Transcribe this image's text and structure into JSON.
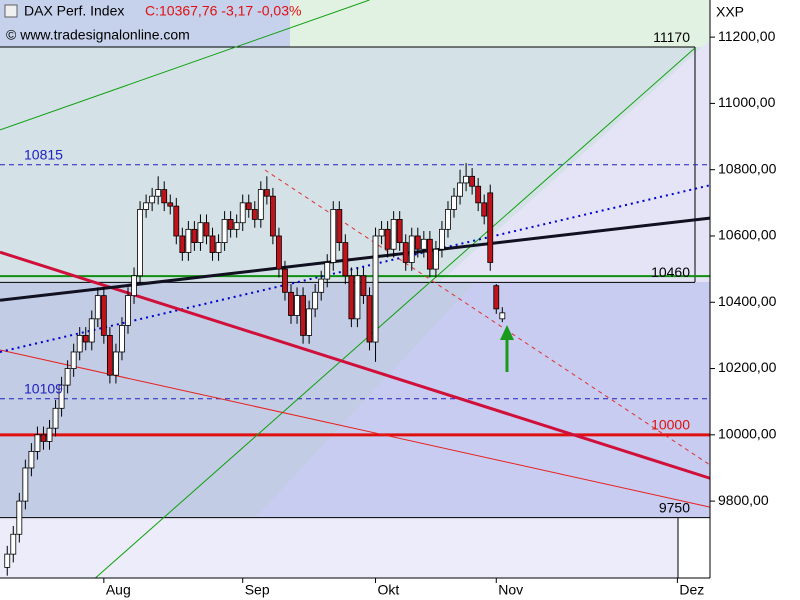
{
  "header": {
    "symbol": "DAX Perf. Index",
    "quote": "C:10367,76 -3,17 -0,03%",
    "source": "© www.tradesignalonline.com",
    "axis_unit": "XXP"
  },
  "chart_data": {
    "type": "candlestick",
    "open": [
      9600,
      9640,
      9700,
      9800,
      9900,
      9950,
      10000,
      9980,
      10020,
      10080,
      10150,
      10200,
      10250,
      10300,
      10280,
      10350,
      10420,
      10300,
      10180,
      10250,
      10330,
      10420,
      10480,
      10680,
      10700,
      10720,
      10740,
      10700,
      10690,
      10600,
      10550,
      10620,
      10580,
      10640,
      10600,
      10550,
      10580,
      10650,
      10620,
      10640,
      10700,
      10680,
      10650,
      10740,
      10720,
      10600,
      10500,
      10430,
      10360,
      10420,
      10300,
      10380,
      10430,
      10470,
      10520,
      10680,
      10580,
      10480,
      10350,
      10480,
      10420,
      10280,
      10600,
      10620,
      10560,
      10650,
      10580,
      10520,
      10600,
      10560,
      10590,
      10500,
      10560,
      10620,
      10680,
      10720,
      10760,
      10780,
      10750,
      10700,
      10730,
      10450,
      10350
    ],
    "high": [
      9665,
      9725,
      9825,
      9925,
      9975,
      10025,
      10025,
      10045,
      10105,
      10175,
      10225,
      10275,
      10325,
      10325,
      10375,
      10445,
      10445,
      10325,
      10275,
      10355,
      10445,
      10505,
      10705,
      10725,
      10745,
      10780,
      10765,
      10725,
      10715,
      10625,
      10645,
      10645,
      10665,
      10665,
      10625,
      10605,
      10675,
      10675,
      10665,
      10725,
      10725,
      10705,
      10765,
      10780,
      10745,
      10625,
      10525,
      10455,
      10445,
      10445,
      10405,
      10455,
      10495,
      10545,
      10705,
      10705,
      10605,
      10505,
      10505,
      10505,
      10445,
      10625,
      10645,
      10645,
      10675,
      10675,
      10605,
      10625,
      10625,
      10615,
      10615,
      10585,
      10645,
      10705,
      10745,
      10800,
      10820,
      10805,
      10775,
      10725,
      10755,
      10455,
      10385
    ],
    "low": [
      9575,
      9615,
      9675,
      9775,
      9875,
      9925,
      9955,
      9955,
      9995,
      10055,
      10125,
      10175,
      10225,
      10255,
      10255,
      10325,
      10275,
      10155,
      10155,
      10225,
      10305,
      10395,
      10455,
      10655,
      10675,
      10695,
      10675,
      10665,
      10575,
      10525,
      10525,
      10555,
      10555,
      10575,
      10525,
      10525,
      10555,
      10595,
      10595,
      10615,
      10655,
      10625,
      10625,
      10695,
      10575,
      10475,
      10405,
      10335,
      10335,
      10275,
      10275,
      10355,
      10405,
      10445,
      10495,
      10555,
      10455,
      10325,
      10325,
      10395,
      10255,
      10220,
      10575,
      10535,
      10535,
      10555,
      10495,
      10495,
      10535,
      10535,
      10475,
      10475,
      10535,
      10595,
      10655,
      10695,
      10735,
      10725,
      10675,
      10635,
      10495,
      10365,
      10340
    ],
    "close": [
      9640,
      9700,
      9800,
      9900,
      9950,
      10000,
      9980,
      10020,
      10080,
      10150,
      10200,
      10250,
      10300,
      10280,
      10350,
      10420,
      10300,
      10180,
      10250,
      10330,
      10420,
      10480,
      10680,
      10700,
      10720,
      10740,
      10700,
      10690,
      10600,
      10550,
      10620,
      10580,
      10640,
      10600,
      10550,
      10580,
      10650,
      10620,
      10640,
      10700,
      10680,
      10650,
      10740,
      10720,
      10600,
      10500,
      10430,
      10360,
      10420,
      10300,
      10380,
      10430,
      10470,
      10520,
      10680,
      10580,
      10480,
      10350,
      10480,
      10420,
      10280,
      10600,
      10620,
      10560,
      10650,
      10580,
      10520,
      10600,
      10560,
      10590,
      10500,
      10560,
      10620,
      10680,
      10720,
      10760,
      10780,
      10750,
      10700,
      10660,
      10520,
      10380,
      10368
    ],
    "up_color": "#ffffff",
    "down_color": "#c0141c",
    "xlim": [
      -1.2,
      116.4
    ],
    "xticks": [
      {
        "value": 16,
        "label": "Aug"
      },
      {
        "value": 39,
        "label": "Sep"
      },
      {
        "value": 61,
        "label": "Okt"
      },
      {
        "value": 81,
        "label": "Nov"
      },
      {
        "value": 111,
        "label": "Dez"
      }
    ],
    "ylim": [
      9568,
      11312
    ],
    "yticks": [
      {
        "value": 9800,
        "label": "9800,00"
      },
      {
        "value": 10000,
        "label": "10000,00"
      },
      {
        "value": 10200,
        "label": "10200,00"
      },
      {
        "value": 10400,
        "label": "10400,00"
      },
      {
        "value": 10600,
        "label": "10600,00"
      },
      {
        "value": 10800,
        "label": "10800,00"
      },
      {
        "value": 11000,
        "label": "11000,00"
      },
      {
        "value": 11200,
        "label": "11200,00"
      }
    ],
    "levels": [
      {
        "value": 11170,
        "color": "#000000",
        "width": 1,
        "dash": false,
        "labeled": true,
        "label_side": "right",
        "label_color": "#000000"
      },
      {
        "value": 10815,
        "color": "#2020c0",
        "width": 1,
        "dash": true,
        "labeled": true,
        "label_side": "left",
        "label_color": "#2020c0"
      },
      {
        "value": 10479,
        "color": "#109010",
        "width": 2,
        "dash": false,
        "labeled": false,
        "label_side": "right",
        "label_color": "#109010"
      },
      {
        "value": 10460,
        "color": "#000000",
        "width": 1,
        "dash": false,
        "labeled": true,
        "label_side": "right",
        "label_color": "#000000"
      },
      {
        "value": 10109,
        "color": "#2020c0",
        "width": 1,
        "dash": true,
        "labeled": true,
        "label_side": "left",
        "label_color": "#2020c0"
      },
      {
        "value": 10000,
        "color": "#e01010",
        "width": 3,
        "dash": false,
        "labeled": true,
        "label_side": "right",
        "label_color": "#e01010"
      },
      {
        "value": 9750,
        "color": "#000000",
        "width": 1,
        "dash": false,
        "labeled": true,
        "label_side": "right",
        "label_color": "#000000"
      }
    ],
    "trendlines": [
      {
        "color": "#10a010",
        "width": 1,
        "dash": false,
        "from": [
          -1.2,
          10920
        ],
        "to": [
          60,
          11312
        ]
      },
      {
        "color": "#10a010",
        "width": 1,
        "dash": false,
        "from": [
          14.6,
          9568
        ],
        "to": [
          113.9,
          11167
        ]
      },
      {
        "color": "#e03030",
        "width": 1,
        "dash": true,
        "from": [
          42.7,
          10799
        ],
        "to": [
          116.4,
          9909
        ]
      },
      {
        "color": "#e82020",
        "width": 1,
        "dash": false,
        "from": [
          -1.2,
          10256
        ],
        "to": [
          116.4,
          9782
        ]
      },
      {
        "color": "#0000cc",
        "width": 2,
        "dash": true,
        "from": [
          -1.2,
          10250
        ],
        "to": [
          116.4,
          10753
        ]
      },
      {
        "color": "#d0103a",
        "width": 3,
        "dash": false,
        "from": [
          -1.2,
          10551
        ],
        "to": [
          116.4,
          9869
        ]
      },
      {
        "color": "#101020",
        "width": 3,
        "dash": false,
        "from": [
          -1.2,
          10406
        ],
        "to": [
          116.4,
          10654
        ]
      }
    ]
  }
}
